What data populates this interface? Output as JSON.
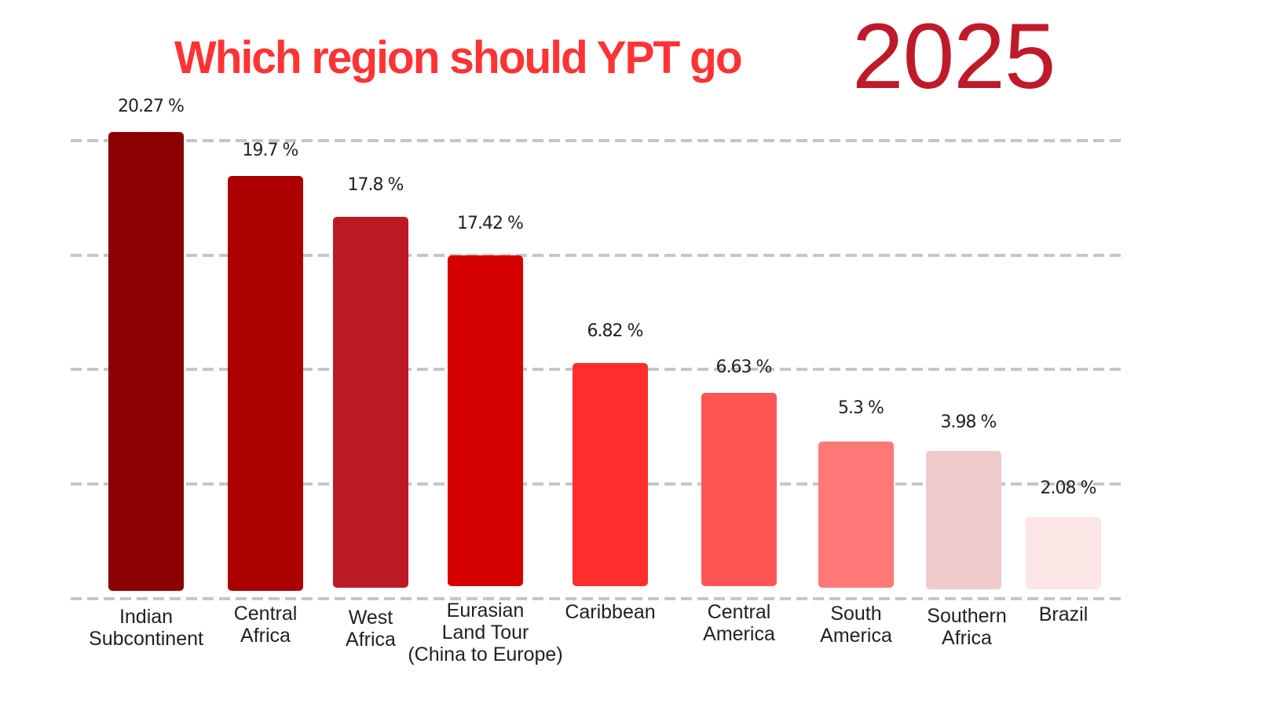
{
  "title": {
    "main": "Which region should YPT go",
    "year": "2025",
    "main_color": "#ff3333",
    "year_color": "#be1a2a"
  },
  "chart_data": {
    "type": "bar",
    "title": "Which region should YPT go 2025",
    "xlabel": "",
    "ylabel": "",
    "grid": true,
    "legend": "none",
    "categories": [
      [
        "Indian",
        "Subcontinent"
      ],
      [
        "Central",
        "Africa"
      ],
      [
        "West",
        "Africa"
      ],
      [
        "Eurasian",
        "Land Tour",
        "(China to Europe)"
      ],
      [
        "Caribbean"
      ],
      [
        "Central",
        "America"
      ],
      [
        "South",
        "America"
      ],
      [
        "Southern",
        "Africa"
      ],
      [
        "Brazil"
      ]
    ],
    "values": [
      20.27,
      19.7,
      17.8,
      17.42,
      6.82,
      6.63,
      5.3,
      3.98,
      2.08
    ],
    "value_labels": [
      "20.27 %",
      "19.7 %",
      "17.8 %",
      "17.42 %",
      "6.82 %",
      "6.63 %",
      "5.3 %",
      "3.98 %",
      "2.08 %"
    ],
    "unit": "%",
    "colors": [
      "#8b0000",
      "#aa0000",
      "#bb1a25",
      "#d50000",
      "#ff2e2e",
      "#ff5555",
      "#ff7878",
      "#eecaca",
      "#fde6e6"
    ]
  }
}
